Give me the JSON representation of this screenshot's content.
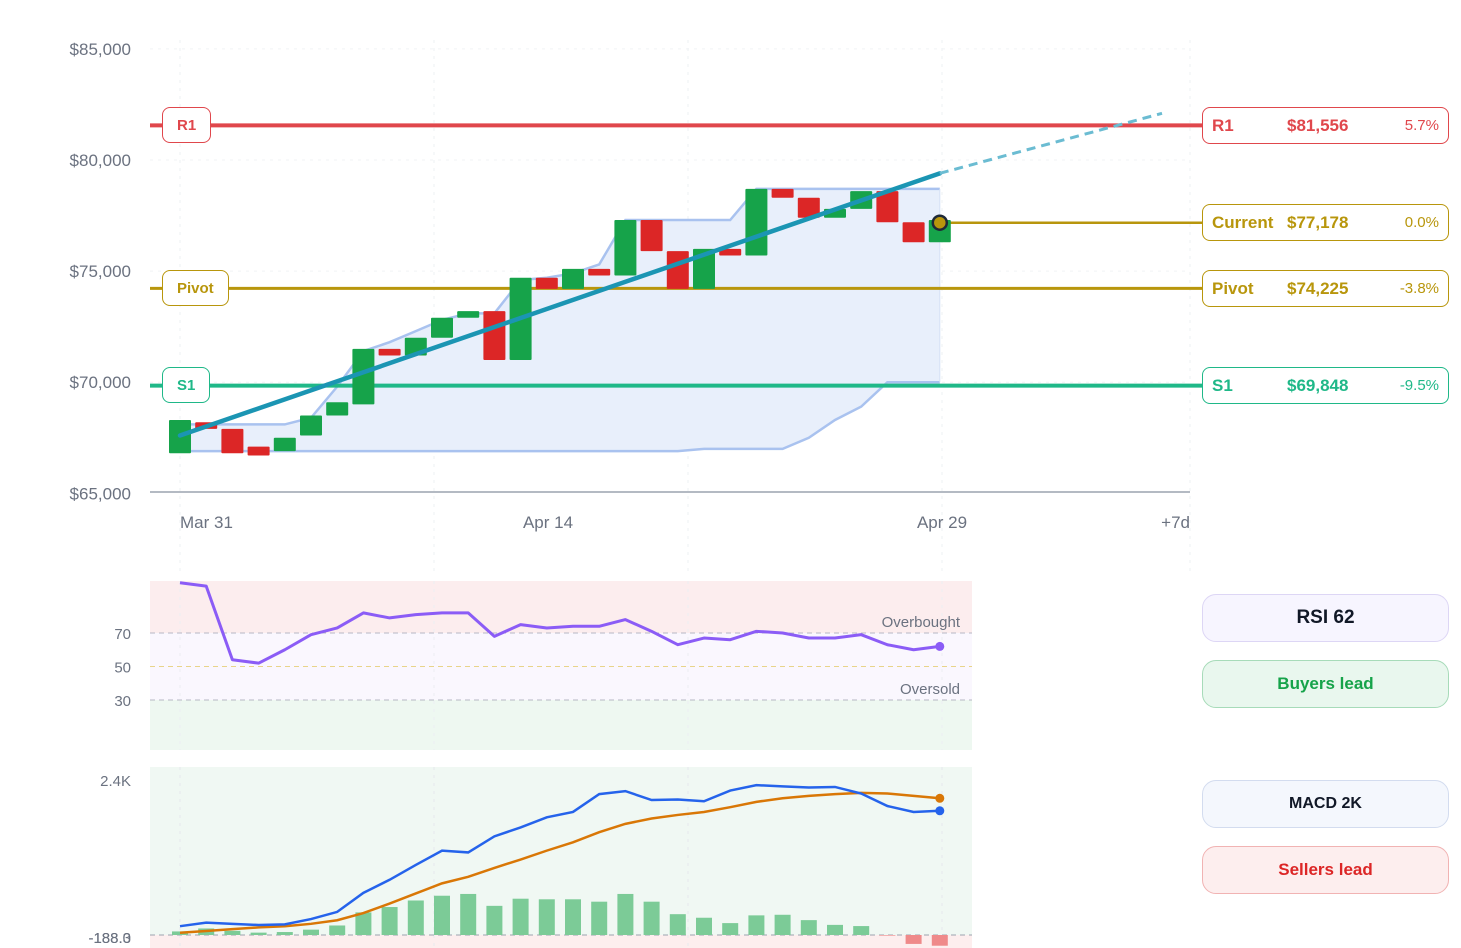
{
  "chart_data": [
    {
      "type": "candlestick",
      "y_tick_labels": [
        "$85,000",
        "$80,000",
        "$75,000",
        "$70,000",
        "$65,000"
      ],
      "ylim": [
        65000,
        85000
      ],
      "x_tick_labels": [
        "Mar 31",
        "Apr 14",
        "Apr 29",
        "+7d"
      ],
      "candles": [
        {
          "o": 66800,
          "c": 68300
        },
        {
          "o": 68200,
          "c": 67900
        },
        {
          "o": 67900,
          "c": 66800
        },
        {
          "o": 67100,
          "c": 66700
        },
        {
          "o": 66900,
          "c": 67500
        },
        {
          "o": 67600,
          "c": 68500
        },
        {
          "o": 68500,
          "c": 69100
        },
        {
          "o": 69000,
          "c": 71500
        },
        {
          "o": 71500,
          "c": 71200
        },
        {
          "o": 71200,
          "c": 72000
        },
        {
          "o": 72000,
          "c": 72900
        },
        {
          "o": 72900,
          "c": 73200
        },
        {
          "o": 73200,
          "c": 71000
        },
        {
          "o": 71000,
          "c": 74700
        },
        {
          "o": 74700,
          "c": 74200
        },
        {
          "o": 74200,
          "c": 75100
        },
        {
          "o": 75100,
          "c": 74800
        },
        {
          "o": 74800,
          "c": 77300
        },
        {
          "o": 77300,
          "c": 75900
        },
        {
          "o": 75900,
          "c": 74200
        },
        {
          "o": 74200,
          "c": 76000
        },
        {
          "o": 76000,
          "c": 75700
        },
        {
          "o": 75700,
          "c": 78700
        },
        {
          "o": 78700,
          "c": 78300
        },
        {
          "o": 78300,
          "c": 77400
        },
        {
          "o": 77400,
          "c": 77800
        },
        {
          "o": 77800,
          "c": 78600
        },
        {
          "o": 78600,
          "c": 77200
        },
        {
          "o": 77200,
          "c": 76300
        },
        {
          "o": 76300,
          "c": 77300
        }
      ],
      "band_upper": [
        68100,
        68100,
        68100,
        68100,
        68100,
        68400,
        69800,
        71400,
        71800,
        72300,
        72800,
        73100,
        73100,
        74600,
        74700,
        74900,
        75300,
        77300,
        77300,
        77300,
        77300,
        77300,
        78700,
        78700,
        78700,
        78700,
        78700,
        78700,
        78700,
        78700
      ],
      "band_lower": [
        66900,
        66900,
        66900,
        66900,
        66900,
        66900,
        66900,
        66900,
        66900,
        66900,
        66900,
        66900,
        66900,
        66900,
        66900,
        66900,
        66900,
        66900,
        66900,
        66900,
        67000,
        67000,
        67000,
        67000,
        67500,
        68300,
        68900,
        70000,
        70000,
        70000
      ],
      "trend_line": {
        "from": 67600,
        "to": 79400,
        "projection_end": 82100
      },
      "levels": [
        {
          "name": "R1",
          "value": 81556,
          "price_label": "$81,556",
          "pct_label": "5.7%",
          "color": "#e0474c",
          "bg": "#ffffff"
        },
        {
          "name": "Current",
          "value": 77178,
          "price_label": "$77,178",
          "pct_label": "0.0%",
          "color": "#b8960c",
          "bg": "#ffffff"
        },
        {
          "name": "Pivot",
          "value": 74225,
          "price_label": "$74,225",
          "pct_label": "-3.8%",
          "color": "#b8960c",
          "bg": "#ffffff"
        },
        {
          "name": "S1",
          "value": 69848,
          "price_label": "$69,848",
          "pct_label": "-9.5%",
          "color": "#1fb888",
          "bg": "#ffffff"
        }
      ],
      "colors": {
        "up": "#16a34a",
        "down": "#dc2626",
        "trend": "#1b95b3",
        "band": "#a9c2ef"
      }
    },
    {
      "type": "line",
      "name": "RSI",
      "y_tick_labels": [
        "70",
        "50",
        "30"
      ],
      "ylim": [
        0,
        100
      ],
      "annotations": [
        "Overbought",
        "Oversold"
      ],
      "values": [
        100,
        98,
        54,
        52,
        60,
        69,
        73,
        82,
        79,
        81,
        82,
        82,
        68,
        75,
        73,
        74,
        74,
        78,
        71,
        63,
        67,
        66,
        71,
        70,
        67,
        67,
        69,
        63,
        60,
        62
      ],
      "color": "#8b5cf6"
    },
    {
      "type": "line",
      "name": "MACD",
      "y_tick_labels": [
        "2.4K",
        "-188.3",
        "-188.0"
      ],
      "ylim": [
        -188,
        2400
      ],
      "macd": [
        -40,
        20,
        0,
        -20,
        -10,
        80,
        200,
        520,
        740,
        990,
        1230,
        1200,
        1470,
        1620,
        1790,
        1880,
        2180,
        2230,
        2080,
        2090,
        2060,
        2240,
        2330,
        2310,
        2290,
        2300,
        2190,
        1980,
        1880,
        1900
      ],
      "signal": [
        -150,
        -120,
        -90,
        -60,
        -40,
        0,
        60,
        180,
        340,
        510,
        680,
        790,
        940,
        1080,
        1230,
        1370,
        1540,
        1680,
        1770,
        1830,
        1880,
        1960,
        2050,
        2110,
        2150,
        2180,
        2200,
        2190,
        2150,
        2110
      ],
      "histogram": [
        60,
        110,
        70,
        40,
        50,
        90,
        160,
        380,
        470,
        580,
        660,
        690,
        490,
        610,
        600,
        600,
        560,
        690,
        560,
        350,
        290,
        200,
        330,
        340,
        250,
        170,
        150,
        -10,
        -150,
        -180
      ],
      "colors": {
        "macd": "#2563eb",
        "signal": "#d97706",
        "hist_up": "#7ccb97",
        "hist_down": "#ef8a8a"
      }
    }
  ],
  "panels": {
    "rsi_label": "RSI 62",
    "rsi_status": "Buyers lead",
    "macd_label": "MACD 2K",
    "macd_status": "Sellers lead"
  }
}
